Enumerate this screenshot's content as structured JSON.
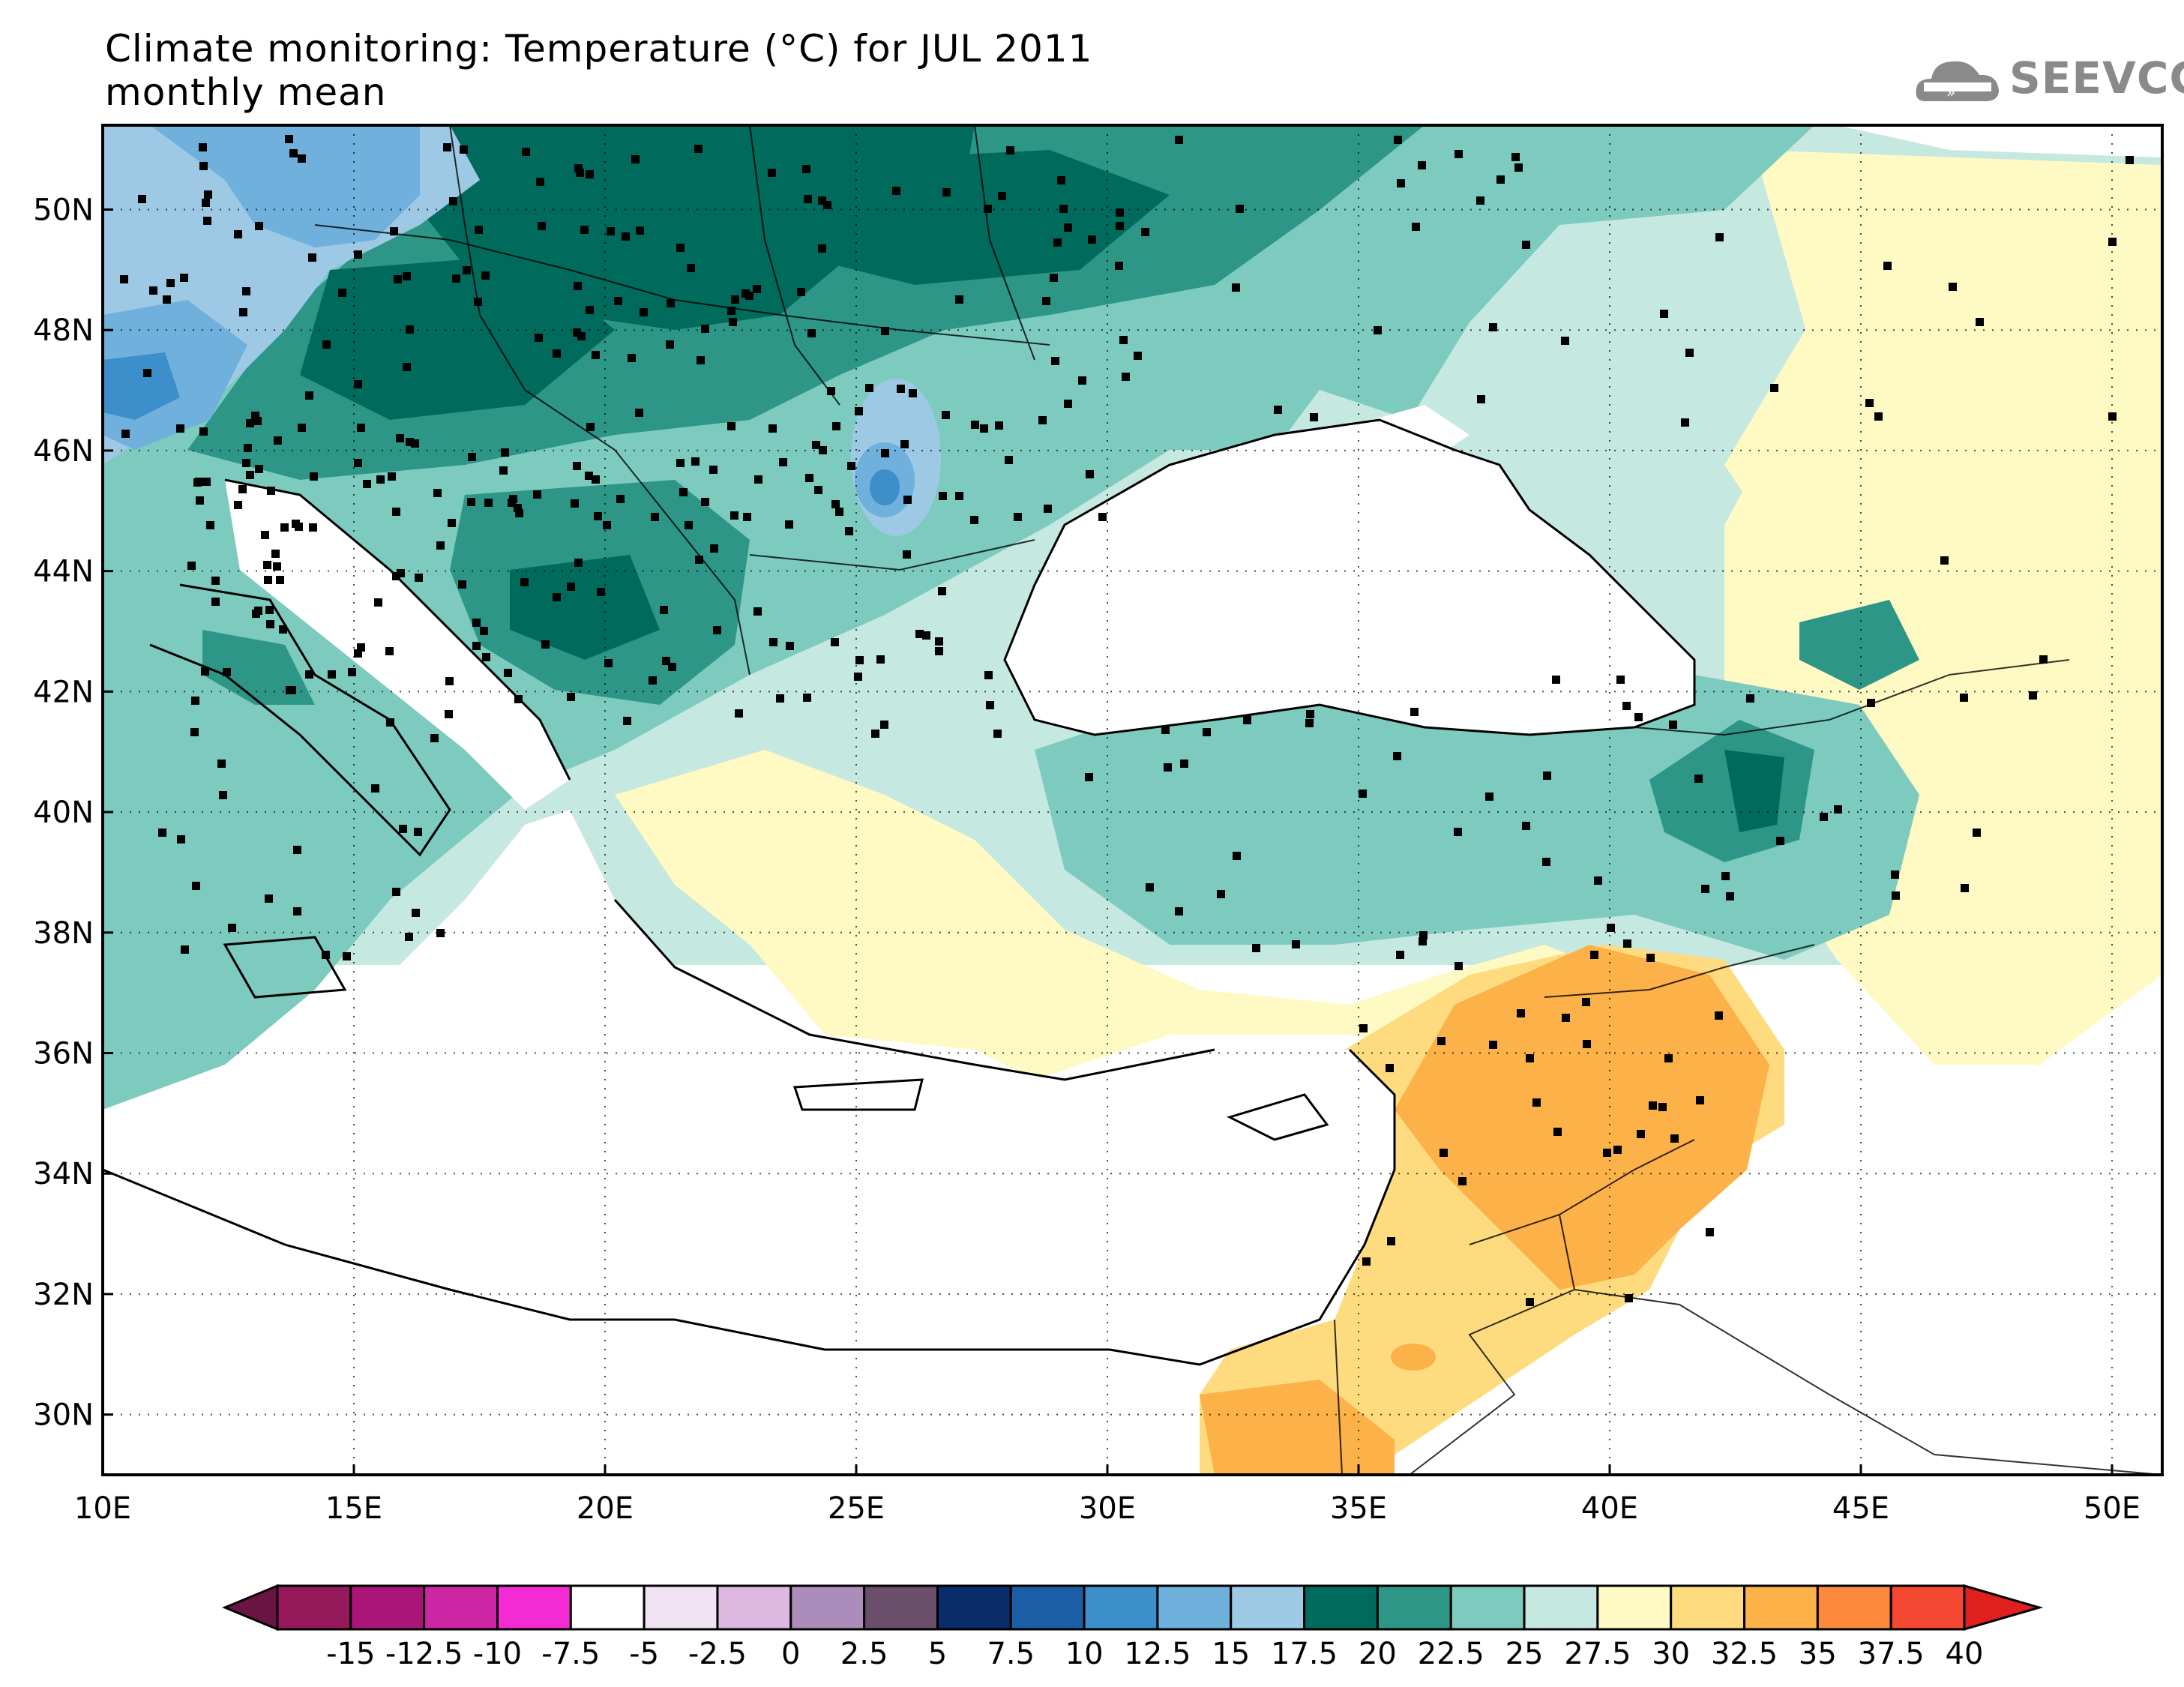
{
  "header": {
    "title_line1": "Climate monitoring: Temperature (°C) for JUL 2011",
    "title_line2": "monthly mean"
  },
  "logo": {
    "text": "SEEVCCC",
    "icon": "cloud-icon"
  },
  "map": {
    "lat_labels": [
      "50N",
      "48N",
      "46N",
      "44N",
      "42N",
      "40N",
      "38N",
      "36N",
      "34N",
      "32N",
      "30N"
    ],
    "lon_labels": [
      "10E",
      "15E",
      "20E",
      "25E",
      "30E",
      "35E",
      "40E",
      "45E",
      "50E"
    ],
    "lat_values": [
      50,
      48,
      46,
      44,
      42,
      40,
      38,
      36,
      34,
      32,
      30
    ],
    "lon_values": [
      10,
      15,
      20,
      25,
      30,
      35,
      40,
      45,
      50
    ],
    "extent": {
      "lon_min": 10,
      "lon_max": 51,
      "lat_min": 29,
      "lat_max": 51.4
    },
    "gridlines": "dotted"
  },
  "colorbar": {
    "labels": [
      "-15",
      "-12.5",
      "-10",
      "-7.5",
      "-5",
      "-2.5",
      "0",
      "2.5",
      "5",
      "7.5",
      "10",
      "12.5",
      "15",
      "17.5",
      "20",
      "22.5",
      "25",
      "27.5",
      "30",
      "32.5",
      "35",
      "37.5",
      "40"
    ],
    "colors": [
      "#96195b",
      "#aa1678",
      "#cc26a5",
      "#f42bd2",
      "#ffffff",
      "#f2e3f4",
      "#dcb8e0",
      "#ab8cbb",
      "#6b4d6c",
      "#0a2d6a",
      "#1c5ea5",
      "#3c8fca",
      "#6fb0dc",
      "#9dc9e4",
      "#006b5d",
      "#2d9687",
      "#7dcabf",
      "#c5e8e1",
      "#fff9c3",
      "#fedb7e",
      "#fcb149",
      "#fd8a3c",
      "#f54833"
    ],
    "under_color": "#6a1444",
    "over_color": "#e0201f"
  }
}
